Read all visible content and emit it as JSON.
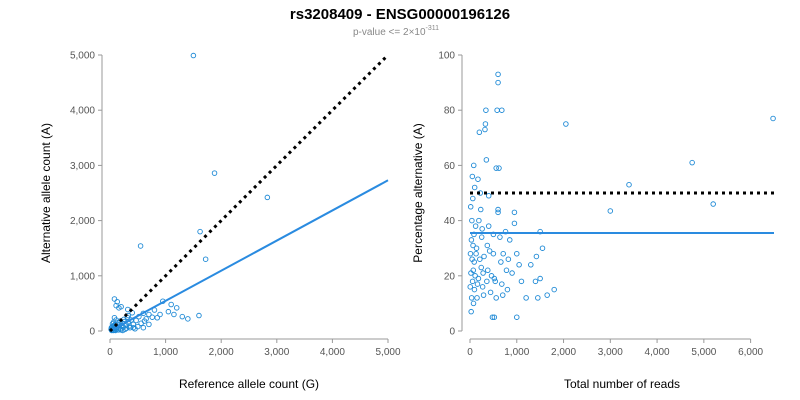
{
  "title": "rs3208409 - ENSG00000196126",
  "subtitle": {
    "prefix": "p-value <= 2×10",
    "exponent": "-311"
  },
  "colors": {
    "points": "#1f8ad6",
    "fit_line": "#2a8be0",
    "reference_line": "#000000"
  },
  "chart_data": [
    {
      "type": "scatter",
      "ylabel": "Alternative allele count (A)",
      "xlabel": "Reference allele count (G)",
      "xlim": [
        0,
        5000
      ],
      "ylim": [
        0,
        5000
      ],
      "x_ticks": [
        0,
        1000,
        2000,
        3000,
        4000,
        5000
      ],
      "x_tick_labels": [
        "0",
        "1,000",
        "2,000",
        "3,000",
        "4,000",
        "5,000"
      ],
      "y_ticks": [
        0,
        1000,
        2000,
        3000,
        4000,
        5000
      ],
      "y_tick_labels": [
        "0",
        "1,000",
        "2,000",
        "3,000",
        "4,000",
        "5,000"
      ],
      "reference_line": {
        "style": "dotted",
        "x": [
          0,
          5000
        ],
        "y": [
          0,
          5000
        ]
      },
      "fit_line": {
        "style": "solid",
        "x": [
          0,
          5000
        ],
        "y": [
          0,
          2730
        ]
      },
      "points": [
        [
          1500,
          4990
        ],
        [
          1880,
          2860
        ],
        [
          2830,
          2420
        ],
        [
          1620,
          1800
        ],
        [
          1720,
          1300
        ],
        [
          550,
          1540
        ],
        [
          1600,
          280
        ],
        [
          1400,
          220
        ],
        [
          1300,
          260
        ],
        [
          1200,
          420
        ],
        [
          1150,
          300
        ],
        [
          1100,
          480
        ],
        [
          1050,
          350
        ],
        [
          950,
          540
        ],
        [
          900,
          300
        ],
        [
          850,
          240
        ],
        [
          800,
          380
        ],
        [
          760,
          250
        ],
        [
          700,
          120
        ],
        [
          650,
          220
        ],
        [
          620,
          180
        ],
        [
          600,
          320
        ],
        [
          560,
          140
        ],
        [
          520,
          260
        ],
        [
          500,
          80
        ],
        [
          470,
          190
        ],
        [
          450,
          40
        ],
        [
          420,
          120
        ],
        [
          400,
          330
        ],
        [
          380,
          200
        ],
        [
          360,
          60
        ],
        [
          350,
          90
        ],
        [
          330,
          150
        ],
        [
          310,
          250
        ],
        [
          300,
          50
        ],
        [
          290,
          110
        ],
        [
          270,
          30
        ],
        [
          260,
          170
        ],
        [
          250,
          210
        ],
        [
          240,
          70
        ],
        [
          230,
          10
        ],
        [
          220,
          140
        ],
        [
          210,
          100
        ],
        [
          200,
          20
        ],
        [
          190,
          40
        ],
        [
          180,
          180
        ],
        [
          170,
          110
        ],
        [
          160,
          60
        ],
        [
          150,
          20
        ],
        [
          140,
          150
        ],
        [
          130,
          80
        ],
        [
          120,
          30
        ],
        [
          110,
          200
        ],
        [
          100,
          10
        ],
        [
          95,
          120
        ],
        [
          90,
          60
        ],
        [
          85,
          20
        ],
        [
          80,
          240
        ],
        [
          75,
          100
        ],
        [
          70,
          40
        ],
        [
          65,
          160
        ],
        [
          60,
          10
        ],
        [
          55,
          90
        ],
        [
          50,
          50
        ],
        [
          45,
          130
        ],
        [
          40,
          20
        ],
        [
          35,
          70
        ],
        [
          30,
          10
        ],
        [
          25,
          60
        ],
        [
          20,
          30
        ],
        [
          80,
          580
        ],
        [
          130,
          530
        ],
        [
          160,
          420
        ],
        [
          110,
          460
        ],
        [
          320,
          390
        ],
        [
          200,
          440
        ],
        [
          330,
          280
        ],
        [
          420,
          60
        ],
        [
          600,
          60
        ],
        [
          700,
          300
        ]
      ]
    },
    {
      "type": "scatter",
      "ylabel": "Percentage alternative (A)",
      "xlabel": "Total number of reads",
      "xlim": [
        0,
        6500
      ],
      "ylim": [
        0,
        100
      ],
      "x_ticks": [
        0,
        1000,
        2000,
        3000,
        4000,
        5000,
        6000
      ],
      "x_tick_labels": [
        "0",
        "1,000",
        "2,000",
        "3,000",
        "4,000",
        "5,000",
        "6,000"
      ],
      "y_ticks": [
        0,
        20,
        40,
        60,
        80,
        100
      ],
      "y_tick_labels": [
        "0",
        "20",
        "40",
        "60",
        "80",
        "100"
      ],
      "reference_line": {
        "style": "dotted",
        "x": [
          0,
          6500
        ],
        "y": [
          50,
          50
        ]
      },
      "fit_line": {
        "style": "solid",
        "x": [
          0,
          6500
        ],
        "y": [
          35.5,
          35.5
        ]
      },
      "points": [
        [
          6480,
          77
        ],
        [
          4750,
          61
        ],
        [
          5200,
          46
        ],
        [
          3400,
          53
        ],
        [
          3000,
          43.5
        ],
        [
          2050,
          75
        ],
        [
          1800,
          15
        ],
        [
          1650,
          13
        ],
        [
          1550,
          30
        ],
        [
          1500,
          19
        ],
        [
          1500,
          36
        ],
        [
          1450,
          12
        ],
        [
          1420,
          27
        ],
        [
          1400,
          18
        ],
        [
          1300,
          24
        ],
        [
          1200,
          12
        ],
        [
          1100,
          18
        ],
        [
          1050,
          24
        ],
        [
          1000,
          5
        ],
        [
          1000,
          28
        ],
        [
          950,
          43
        ],
        [
          950,
          39
        ],
        [
          900,
          21
        ],
        [
          850,
          33
        ],
        [
          800,
          15
        ],
        [
          780,
          22
        ],
        [
          700,
          13
        ],
        [
          680,
          17
        ],
        [
          660,
          25
        ],
        [
          640,
          34
        ],
        [
          620,
          59
        ],
        [
          600,
          44
        ],
        [
          600,
          43
        ],
        [
          600,
          93
        ],
        [
          600,
          90
        ],
        [
          580,
          80
        ],
        [
          560,
          12
        ],
        [
          540,
          18
        ],
        [
          520,
          19
        ],
        [
          500,
          28
        ],
        [
          500,
          35
        ],
        [
          480,
          5
        ],
        [
          460,
          20
        ],
        [
          440,
          14
        ],
        [
          420,
          29
        ],
        [
          400,
          49
        ],
        [
          400,
          38
        ],
        [
          380,
          22
        ],
        [
          370,
          31
        ],
        [
          360,
          18
        ],
        [
          350,
          62
        ],
        [
          340,
          80
        ],
        [
          330,
          75
        ],
        [
          320,
          73
        ],
        [
          300,
          27
        ],
        [
          290,
          13
        ],
        [
          280,
          21
        ],
        [
          270,
          16
        ],
        [
          260,
          37
        ],
        [
          250,
          34
        ],
        [
          240,
          23
        ],
        [
          230,
          44
        ],
        [
          220,
          50
        ],
        [
          210,
          26
        ],
        [
          200,
          72
        ],
        [
          190,
          40
        ],
        [
          180,
          19
        ],
        [
          170,
          55
        ],
        [
          160,
          17
        ],
        [
          150,
          12
        ],
        [
          140,
          30
        ],
        [
          130,
          28
        ],
        [
          120,
          38
        ],
        [
          110,
          20
        ],
        [
          100,
          52
        ],
        [
          95,
          15
        ],
        [
          90,
          25
        ],
        [
          85,
          35
        ],
        [
          80,
          60
        ],
        [
          75,
          10
        ],
        [
          70,
          22
        ],
        [
          65,
          31
        ],
        [
          60,
          48
        ],
        [
          55,
          18
        ],
        [
          50,
          56
        ],
        [
          45,
          26
        ],
        [
          40,
          40
        ],
        [
          35,
          12
        ],
        [
          30,
          33
        ],
        [
          25,
          7
        ],
        [
          20,
          21
        ],
        [
          15,
          45
        ],
        [
          10,
          28
        ],
        [
          5,
          16
        ],
        [
          520,
          5
        ],
        [
          560,
          59
        ],
        [
          680,
          80
        ],
        [
          710,
          28
        ],
        [
          760,
          36
        ],
        [
          820,
          26
        ]
      ]
    }
  ]
}
